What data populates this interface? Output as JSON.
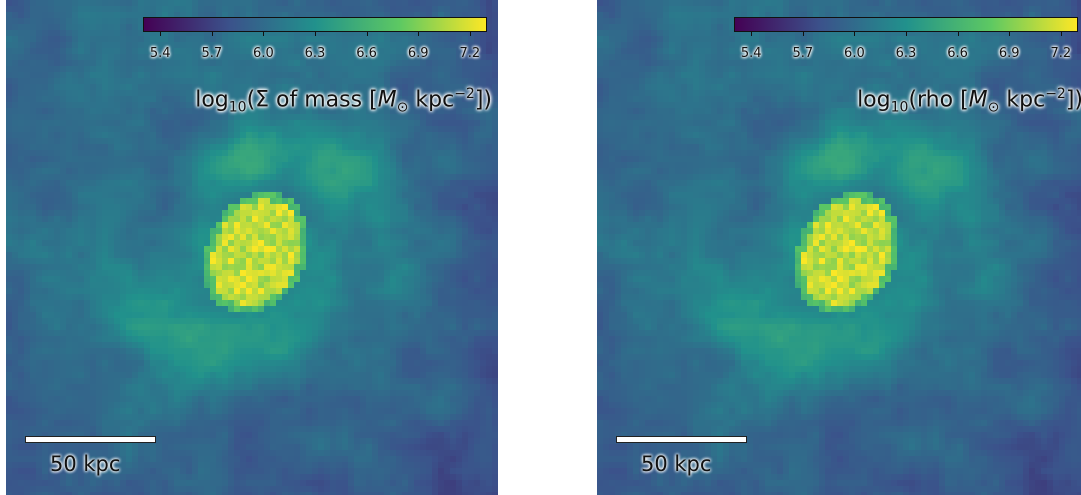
{
  "colormap": {
    "name": "viridis",
    "stops": [
      "#440154",
      "#3b528b",
      "#21918c",
      "#5ec962",
      "#fde725"
    ],
    "ticks": [
      "5.4",
      "5.7",
      "6.0",
      "6.3",
      "6.6",
      "6.9",
      "7.2"
    ],
    "range": [
      5.3,
      7.3
    ]
  },
  "panels": [
    {
      "label_prefix": "log",
      "label_base": "10",
      "label_mid": "(Σ of mass [",
      "label_unit_symbol": "M",
      "label_unit_sub": "⊙",
      "label_unit_rest": " kpc",
      "label_unit_exp": "−2",
      "label_end": "])",
      "scale_bar_text": "50 kpc"
    },
    {
      "label_prefix": "log",
      "label_base": "10",
      "label_mid": "(rho [",
      "label_unit_symbol": "M",
      "label_unit_sub": "⊙",
      "label_unit_rest": " kpc",
      "label_unit_exp": "−2",
      "label_end": "])",
      "scale_bar_text": "50 kpc"
    }
  ]
}
